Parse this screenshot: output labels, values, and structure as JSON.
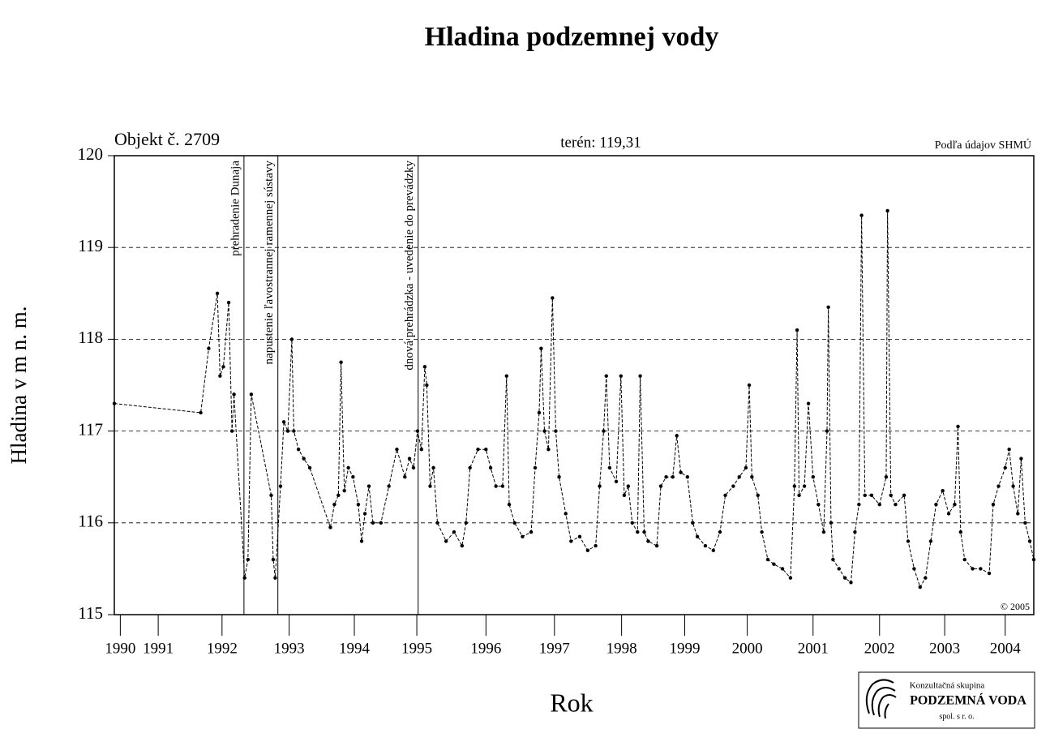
{
  "chart_data": {
    "type": "line",
    "title": "Hladina podzemnej vody",
    "object": "Objekt č. 2709",
    "terrain": "terén: 119,31",
    "source": "Podľa údajov SHMÚ",
    "copyright": "© 2005",
    "x_label": "Rok",
    "y_label": "Hladina v m n. m.",
    "logo": {
      "line1": "Konzultačná skupina",
      "line2": "PODZEMNÁ VODA",
      "line3": "spol. s r. o."
    },
    "xlim": [
      1990.88,
      2004.71
    ],
    "ylim": [
      115,
      120
    ],
    "yticks": [
      115,
      116,
      117,
      118,
      119,
      120
    ],
    "grid": true,
    "xticks": [
      {
        "value": 1990.97,
        "label": "1990"
      },
      {
        "value": 1991.54,
        "label": "1991"
      },
      {
        "value": 1992.5,
        "label": "1992"
      },
      {
        "value": 1993.51,
        "label": "1993"
      },
      {
        "value": 1994.49,
        "label": "1994"
      },
      {
        "value": 1995.43,
        "label": "1995"
      },
      {
        "value": 1996.47,
        "label": "1996"
      },
      {
        "value": 1997.5,
        "label": "1997"
      },
      {
        "value": 1998.51,
        "label": "1998"
      },
      {
        "value": 1999.46,
        "label": "1999"
      },
      {
        "value": 2000.4,
        "label": "2000"
      },
      {
        "value": 2001.39,
        "label": "2001"
      },
      {
        "value": 2002.39,
        "label": "2002"
      },
      {
        "value": 2003.37,
        "label": "2003"
      },
      {
        "value": 2004.28,
        "label": "2004"
      }
    ],
    "events": [
      {
        "x": 1992.83,
        "label": "prehradenie Dunaja"
      },
      {
        "x": 1993.34,
        "label": "napustenie ľavostrannej ramennej sústavy"
      },
      {
        "x": 1995.45,
        "label": "dnová prehrádzka - uvedenie do prevádzky"
      }
    ],
    "x": [
      1990.88,
      1992.18,
      1992.3,
      1992.43,
      1992.47,
      1992.52,
      1992.6,
      1992.65,
      1992.68,
      1992.84,
      1992.89,
      1992.94,
      1993.24,
      1993.27,
      1993.3,
      1993.38,
      1993.43,
      1993.49,
      1993.55,
      1993.58,
      1993.65,
      1993.73,
      1993.82,
      1994.13,
      1994.19,
      1994.25,
      1994.29,
      1994.34,
      1994.4,
      1994.47,
      1994.55,
      1994.6,
      1994.65,
      1994.71,
      1994.77,
      1994.89,
      1995.01,
      1995.13,
      1995.25,
      1995.32,
      1995.38,
      1995.44,
      1995.5,
      1995.55,
      1995.58,
      1995.63,
      1995.68,
      1995.74,
      1995.87,
      1995.99,
      1996.11,
      1996.17,
      1996.23,
      1996.35,
      1996.47,
      1996.54,
      1996.62,
      1996.72,
      1996.78,
      1996.82,
      1996.9,
      1997.02,
      1997.15,
      1997.21,
      1997.27,
      1997.3,
      1997.35,
      1997.41,
      1997.47,
      1997.52,
      1997.57,
      1997.67,
      1997.75,
      1997.88,
      1998.0,
      1998.12,
      1998.18,
      1998.24,
      1998.28,
      1998.33,
      1998.43,
      1998.5,
      1998.55,
      1998.61,
      1998.67,
      1998.75,
      1998.79,
      1998.85,
      1998.91,
      1999.04,
      1999.1,
      1999.18,
      1999.28,
      1999.34,
      1999.4,
      1999.5,
      1999.58,
      1999.65,
      1999.77,
      1999.89,
      1999.99,
      2000.07,
      2000.19,
      2000.28,
      2000.38,
      2000.43,
      2000.47,
      2000.56,
      2000.62,
      2000.71,
      2000.8,
      2000.93,
      2001.05,
      2001.11,
      2001.15,
      2001.18,
      2001.26,
      2001.32,
      2001.39,
      2001.47,
      2001.55,
      2001.6,
      2001.62,
      2001.66,
      2001.69,
      2001.78,
      2001.87,
      2001.96,
      2002.02,
      2002.08,
      2002.12,
      2002.17,
      2002.27,
      2002.39,
      2002.49,
      2002.51,
      2002.56,
      2002.63,
      2002.76,
      2002.82,
      2002.91,
      2003.0,
      2003.08,
      2003.16,
      2003.24,
      2003.34,
      2003.43,
      2003.52,
      2003.57,
      2003.61,
      2003.67,
      2003.79,
      2003.91,
      2004.04,
      2004.1,
      2004.18,
      2004.28,
      2004.34,
      2004.4,
      2004.47,
      2004.52,
      2004.58,
      2004.65,
      2004.71
    ],
    "series": [
      {
        "color": "#000000",
        "values": [
          117.3,
          117.2,
          117.9,
          118.5,
          117.6,
          117.7,
          118.4,
          117.0,
          117.4,
          115.4,
          115.6,
          117.4,
          116.3,
          115.6,
          115.4,
          116.4,
          117.1,
          117.0,
          118.0,
          117.0,
          116.8,
          116.7,
          116.6,
          115.95,
          116.2,
          116.3,
          117.75,
          116.35,
          116.6,
          116.5,
          116.2,
          115.8,
          116.1,
          116.4,
          116.0,
          116.0,
          116.4,
          116.8,
          116.5,
          116.7,
          116.6,
          117.0,
          116.8,
          117.7,
          117.5,
          116.4,
          116.6,
          116.0,
          115.8,
          115.9,
          115.75,
          116.0,
          116.6,
          116.8,
          116.8,
          116.6,
          116.4,
          116.4,
          117.6,
          116.2,
          116.0,
          115.85,
          115.9,
          116.6,
          117.2,
          117.9,
          117.0,
          116.8,
          118.45,
          117.0,
          116.5,
          116.1,
          115.8,
          115.85,
          115.7,
          115.75,
          116.4,
          117.0,
          117.6,
          116.6,
          116.45,
          117.6,
          116.3,
          116.4,
          116.0,
          115.9,
          117.6,
          115.9,
          115.8,
          115.75,
          116.4,
          116.5,
          116.5,
          116.95,
          116.55,
          116.5,
          116.0,
          115.85,
          115.75,
          115.7,
          115.9,
          116.3,
          116.4,
          116.5,
          116.6,
          117.5,
          116.5,
          116.3,
          115.9,
          115.6,
          115.55,
          115.5,
          115.4,
          116.4,
          118.1,
          116.3,
          116.4,
          117.3,
          116.5,
          116.2,
          115.9,
          117.0,
          118.35,
          116.0,
          115.6,
          115.5,
          115.4,
          115.35,
          115.9,
          116.2,
          119.35,
          116.3,
          116.3,
          116.2,
          116.5,
          119.4,
          116.3,
          116.2,
          116.3,
          115.8,
          115.5,
          115.3,
          115.4,
          115.8,
          116.2,
          116.35,
          116.1,
          116.2,
          117.05,
          115.9,
          115.6,
          115.5,
          115.5,
          115.45,
          116.2,
          116.4,
          116.6,
          116.8,
          116.4,
          116.1,
          116.7,
          116.0,
          115.8,
          115.6
        ]
      }
    ]
  }
}
